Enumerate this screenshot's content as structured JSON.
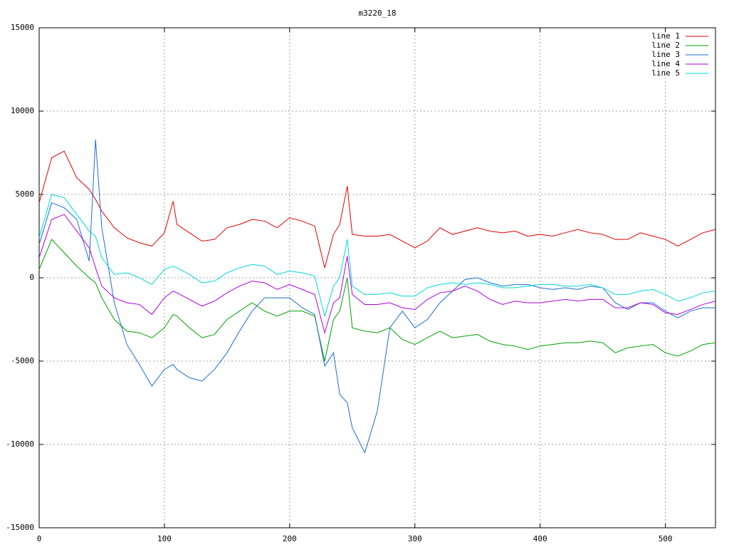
{
  "chart_data": {
    "type": "line",
    "title": "m3220_18",
    "x": [
      0,
      10,
      20,
      30,
      40,
      45,
      50,
      60,
      70,
      80,
      90,
      100,
      107,
      110,
      120,
      130,
      140,
      150,
      160,
      170,
      180,
      190,
      200,
      210,
      220,
      228,
      235,
      240,
      246,
      250,
      260,
      270,
      280,
      290,
      300,
      310,
      320,
      330,
      340,
      350,
      360,
      370,
      380,
      390,
      400,
      410,
      420,
      430,
      440,
      450,
      460,
      470,
      480,
      490,
      500,
      510,
      520,
      530,
      540
    ],
    "series": [
      {
        "name": "line 1",
        "color": "#e00000",
        "values": [
          4500,
          7200,
          7600,
          6000,
          5300,
          4700,
          4000,
          3000,
          2400,
          2100,
          1900,
          2700,
          4600,
          3200,
          2700,
          2200,
          2300,
          3000,
          3200,
          3500,
          3400,
          3000,
          3600,
          3400,
          3100,
          600,
          2600,
          3200,
          5500,
          2600,
          2500,
          2500,
          2600,
          2200,
          1800,
          2200,
          3000,
          2600,
          2800,
          3000,
          2800,
          2700,
          2800,
          2500,
          2600,
          2500,
          2700,
          2900,
          2700,
          2600,
          2300,
          2300,
          2700,
          2500,
          2300,
          1900,
          2300,
          2700,
          2900
        ]
      },
      {
        "name": "line 2",
        "color": "#00a000",
        "values": [
          500,
          2300,
          1500,
          700,
          0,
          -300,
          -1200,
          -2500,
          -3200,
          -3300,
          -3600,
          -3000,
          -2200,
          -2300,
          -3000,
          -3600,
          -3400,
          -2500,
          -2000,
          -1500,
          -2000,
          -2300,
          -2000,
          -2000,
          -2300,
          -5000,
          -2500,
          -2000,
          0,
          -3000,
          -3200,
          -3300,
          -3000,
          -3700,
          -4000,
          -3600,
          -3200,
          -3600,
          -3500,
          -3400,
          -3800,
          -4000,
          -4100,
          -4300,
          -4100,
          -4000,
          -3900,
          -3900,
          -3800,
          -3900,
          -4500,
          -4200,
          -4100,
          -4000,
          -4500,
          -4700,
          -4400,
          -4000,
          -3900
        ]
      },
      {
        "name": "line 3",
        "color": "#1a6fd0",
        "values": [
          2000,
          4500,
          4200,
          3500,
          1000,
          8300,
          3000,
          -1500,
          -4000,
          -5200,
          -6500,
          -5500,
          -5200,
          -5500,
          -6000,
          -6200,
          -5500,
          -4500,
          -3200,
          -2000,
          -1200,
          -1200,
          -1200,
          -1800,
          -2200,
          -5300,
          -4500,
          -7000,
          -7500,
          -9000,
          -10500,
          -8000,
          -3000,
          -2000,
          -3000,
          -2500,
          -1500,
          -800,
          -100,
          0,
          -300,
          -500,
          -400,
          -400,
          -600,
          -700,
          -600,
          -700,
          -500,
          -600,
          -1500,
          -1900,
          -1500,
          -1500,
          -2000,
          -2400,
          -2000,
          -1800,
          -1800
        ]
      },
      {
        "name": "line 4",
        "color": "#b000e0",
        "values": [
          1200,
          3500,
          3800,
          2800,
          1800,
          600,
          -500,
          -1200,
          -1500,
          -1600,
          -2200,
          -1200,
          -800,
          -900,
          -1300,
          -1700,
          -1400,
          -900,
          -500,
          -200,
          -300,
          -700,
          -400,
          -700,
          -1000,
          -3300,
          -1500,
          -1200,
          1300,
          -1000,
          -1600,
          -1600,
          -1500,
          -1800,
          -1900,
          -1300,
          -900,
          -800,
          -500,
          -800,
          -1300,
          -1600,
          -1400,
          -1500,
          -1500,
          -1400,
          -1300,
          -1400,
          -1300,
          -1300,
          -1800,
          -1800,
          -1500,
          -1600,
          -2100,
          -2200,
          -1900,
          -1600,
          -1400
        ]
      },
      {
        "name": "line 5",
        "color": "#00d8d8",
        "values": [
          2400,
          5000,
          4800,
          3800,
          2800,
          2500,
          1200,
          200,
          300,
          0,
          -400,
          500,
          700,
          600,
          200,
          -300,
          -200,
          300,
          600,
          800,
          700,
          200,
          400,
          300,
          100,
          -2300,
          -500,
          0,
          2300,
          -500,
          -1000,
          -1000,
          -900,
          -1100,
          -1100,
          -600,
          -400,
          -300,
          -400,
          -300,
          -400,
          -600,
          -600,
          -500,
          -400,
          -400,
          -500,
          -500,
          -400,
          -600,
          -1000,
          -1000,
          -800,
          -700,
          -1000,
          -1400,
          -1200,
          -900,
          -800
        ]
      }
    ],
    "xlim": [
      0,
      540
    ],
    "xticks": [
      0,
      100,
      200,
      300,
      400,
      500
    ],
    "ylim": [
      -15000,
      15000
    ],
    "yticks": [
      -15000,
      -10000,
      -5000,
      0,
      5000,
      10000,
      15000
    ],
    "grid": true,
    "legend": "top-right"
  }
}
